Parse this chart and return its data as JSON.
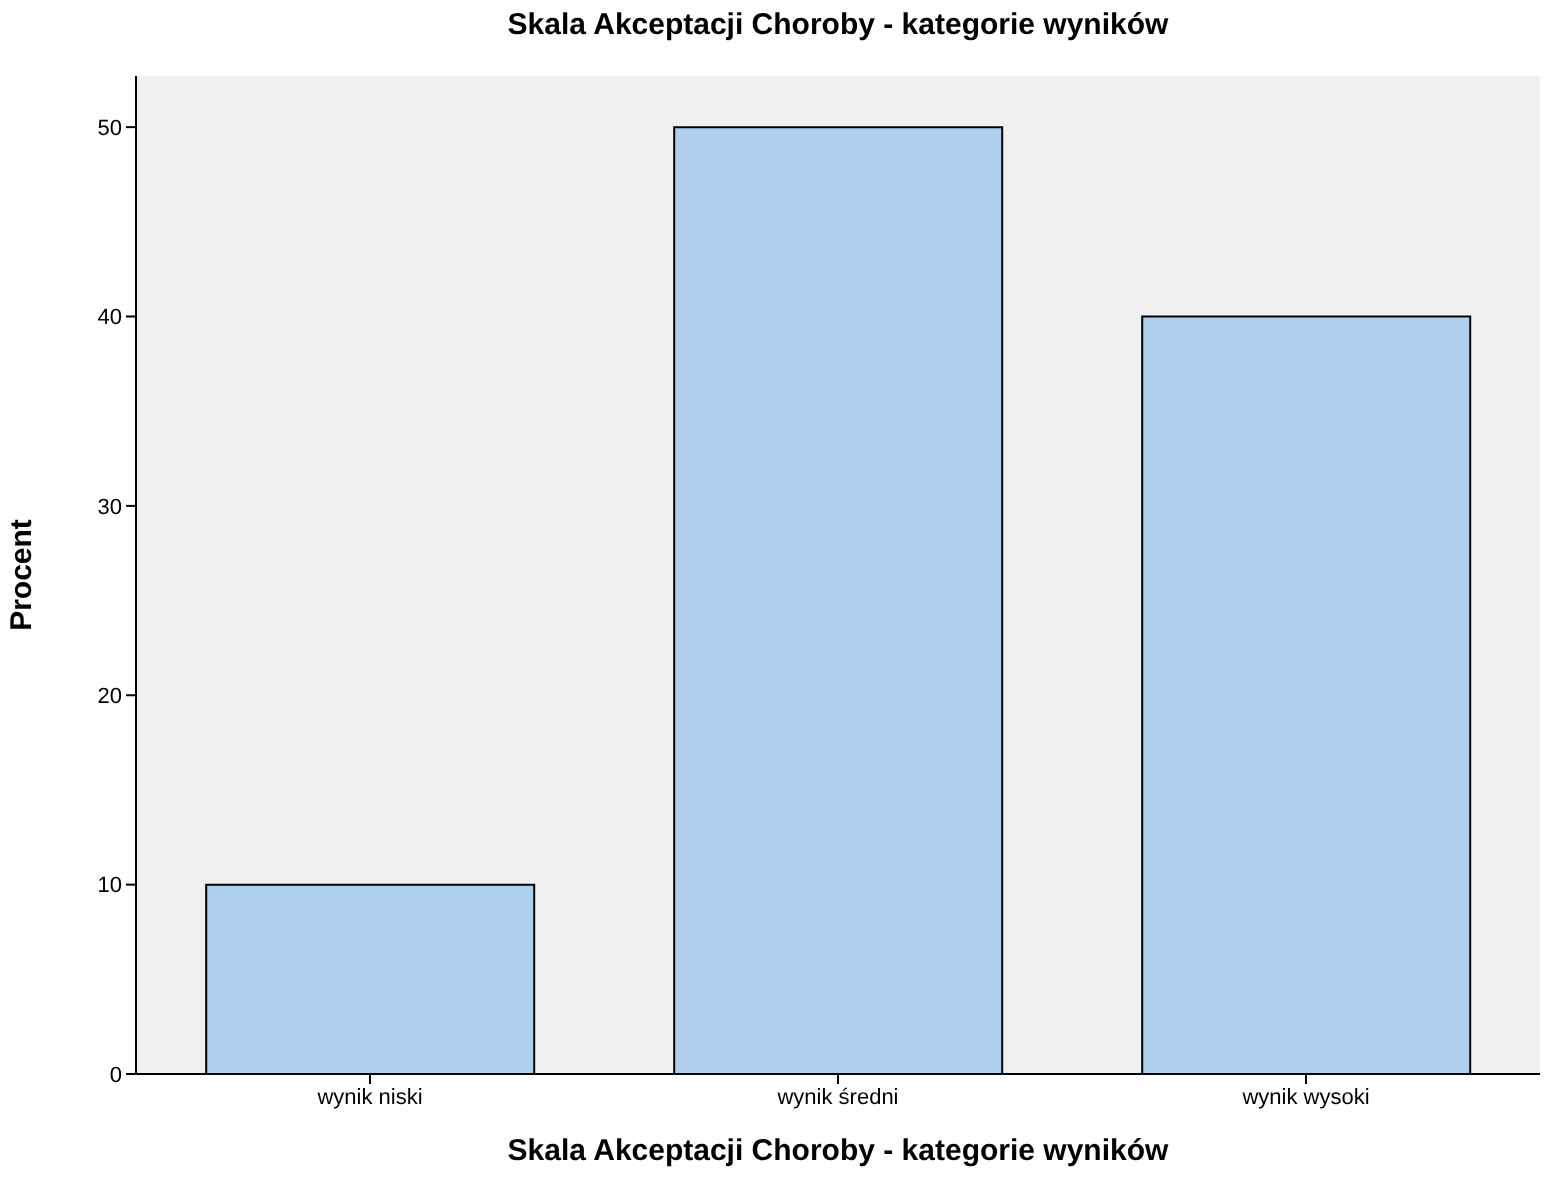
{
  "chart_data": {
    "type": "bar",
    "title": "Skala Akceptacji Choroby - kategorie wyników",
    "xlabel": "Skala Akceptacji Choroby - kategorie wyników",
    "ylabel": "Procent",
    "categories": [
      "wynik niski",
      "wynik średni",
      "wynik wysoki"
    ],
    "values": [
      10,
      50,
      40
    ],
    "color": "#aecfee",
    "ylim": [
      0,
      52.7
    ],
    "yticks": [
      0,
      10,
      20,
      30,
      40,
      50
    ]
  }
}
